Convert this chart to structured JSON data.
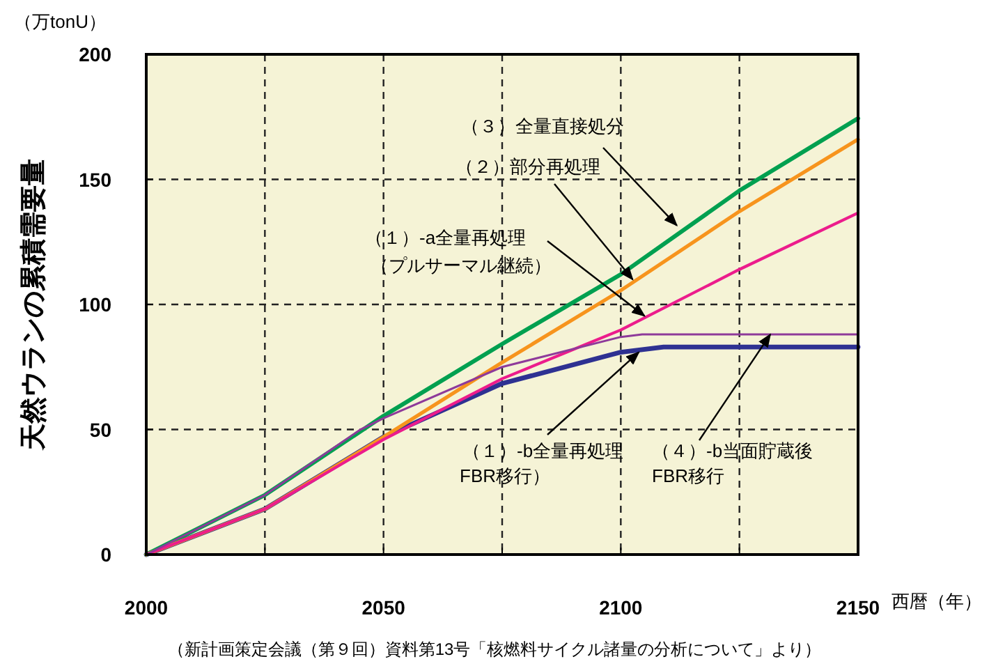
{
  "chart_data": {
    "type": "line",
    "ylabel": "天然ウランの累積需要量",
    "xlabel": "西暦（年）",
    "xlim": [
      2000,
      2150
    ],
    "ylim": [
      0,
      200
    ],
    "xticks": [
      2000,
      {
        "value": 2025,
        "label": null
      },
      2050,
      {
        "value": 2075,
        "label": null
      },
      2100,
      {
        "value": 2125,
        "label": null
      },
      2150
    ],
    "yticks": [
      0,
      50,
      100,
      150,
      200
    ],
    "grid": true,
    "line_style": "solid",
    "marker": "none",
    "series": [
      {
        "color": "#00a050",
        "x": [
          2000,
          2025,
          2050,
          2075,
          2100,
          2125,
          2150
        ],
        "values": [
          0,
          23.8,
          55.4,
          84.2,
          112,
          145.5,
          174.4
        ]
      },
      {
        "color": "#f7941d",
        "x": [
          2000,
          2025,
          2050,
          2075,
          2100,
          2125,
          2150
        ],
        "values": [
          0,
          18.2,
          47,
          76.8,
          105.6,
          137.2,
          166
        ]
      },
      {
        "color": "#ec1c8c",
        "x": [
          2000,
          2025,
          2050,
          2075,
          2100,
          2125,
          2150
        ],
        "values": [
          0,
          18.2,
          46,
          70.3,
          89.8,
          114,
          136.6
        ]
      },
      {
        "color": "#8e3a9a",
        "x": [
          2000,
          2025,
          2045,
          2050,
          2075,
          2100,
          2104.5,
          2150
        ],
        "values": [
          0,
          23.8,
          49.8,
          54.5,
          75,
          87,
          88,
          88
        ]
      },
      {
        "color": "#2e3192",
        "x": [
          2000,
          2025,
          2050,
          2075,
          2100,
          2109,
          2150
        ],
        "values": [
          0,
          18.2,
          47,
          68.4,
          80.9,
          83,
          83
        ]
      }
    ],
    "annotations": [
      "（万tonU）",
      {
        "text": "（３）全量直接処分",
        "x": 2111.8,
        "y": 131.6
      },
      {
        "text": "（２）部分再処理",
        "x": 2102.5,
        "y": 110
      },
      {
        "text": "（１）-a全量再処理",
        "x": 2105,
        "y": 95.4
      },
      "（プルサーマル継続）",
      {
        "text": "（１）-b全量再処理",
        "x": 2103.8,
        "y": 80.9
      },
      "FBR移行）",
      {
        "text": "（４）-b当面貯蔵後",
        "x": 2131.5,
        "y": 88
      },
      "FBR移行",
      "（新計画策定会議（第９回）資料第13号「核燃料サイクル諸量の分析について」より）"
    ]
  }
}
